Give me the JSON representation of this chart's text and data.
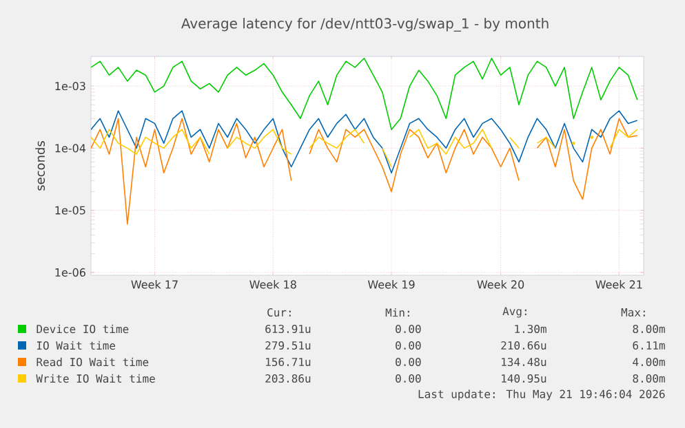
{
  "chart_data": {
    "type": "line",
    "title": "Average latency for /dev/ntt03-vg/swap_1 - by month",
    "ylabel": "seconds",
    "log": true,
    "grid": true,
    "legend": "bottom",
    "ylim": [
      9e-07,
      0.003
    ],
    "yticks": [
      {
        "value": 1e-06,
        "label": "1e-06"
      },
      {
        "value": 1e-05,
        "label": "1e-05"
      },
      {
        "value": 0.0001,
        "label": "1e-04"
      },
      {
        "value": 0.001,
        "label": "1e-03"
      }
    ],
    "categories": [
      null,
      null,
      null,
      null,
      null,
      null,
      null,
      "Week 17",
      null,
      null,
      null,
      null,
      null,
      null,
      null,
      null,
      null,
      null,
      null,
      null,
      "Week 18",
      null,
      null,
      null,
      null,
      null,
      null,
      null,
      null,
      null,
      null,
      null,
      null,
      "Week 19",
      null,
      null,
      null,
      null,
      null,
      null,
      null,
      null,
      null,
      null,
      null,
      "Week 20",
      null,
      null,
      null,
      null,
      null,
      null,
      null,
      null,
      null,
      null,
      null,
      null,
      "Week 21",
      null,
      null
    ],
    "series": [
      {
        "name": "Device IO time",
        "color": "#00cc00",
        "values": [
          0.002,
          0.0025,
          0.0015,
          0.002,
          0.0012,
          0.0018,
          0.0015,
          0.0008,
          0.001,
          0.002,
          0.0025,
          0.0012,
          0.0009,
          0.0011,
          0.0008,
          0.0015,
          0.002,
          0.0015,
          0.0018,
          0.0023,
          0.0015,
          0.0008,
          0.0005,
          0.0003,
          0.0007,
          0.0012,
          0.0005,
          0.0015,
          0.0025,
          0.002,
          0.0028,
          0.0015,
          0.0008,
          0.0002,
          0.0003,
          0.001,
          0.0018,
          0.0012,
          0.0007,
          0.0003,
          0.0015,
          0.002,
          0.0025,
          0.0013,
          0.0028,
          0.0015,
          0.002,
          0.0005,
          0.0015,
          0.0025,
          0.002,
          0.001,
          0.002,
          0.0003,
          0.0008,
          0.002,
          0.0006,
          0.0012,
          0.002,
          0.0015,
          0.0006
        ]
      },
      {
        "name": "IO Wait time",
        "color": "#0066b3",
        "values": [
          0.0002,
          0.0003,
          0.00015,
          0.0004,
          0.0002,
          0.0001,
          0.0003,
          0.00025,
          0.00012,
          0.0003,
          0.0004,
          0.00015,
          0.0002,
          0.0001,
          0.00025,
          0.00015,
          0.0003,
          0.0002,
          0.00012,
          0.0002,
          0.0003,
          0.0001,
          5e-05,
          0.0001,
          0.0002,
          0.0003,
          0.00015,
          0.00025,
          0.00035,
          0.0002,
          0.0003,
          0.00015,
          0.0001,
          4e-05,
          0.0001,
          0.00025,
          0.0003,
          0.0002,
          0.00015,
          0.0001,
          0.0002,
          0.0003,
          0.00015,
          0.00025,
          0.0003,
          0.0002,
          0.00012,
          6e-05,
          0.00015,
          0.0003,
          0.0002,
          0.0001,
          0.00025,
          0.0001,
          6e-05,
          0.0002,
          0.00015,
          0.0003,
          0.0004,
          0.00025,
          0.00028
        ]
      },
      {
        "name": "Read IO Wait time",
        "color": "#ff8000",
        "values": [
          0.0001,
          0.0002,
          8e-05,
          0.0003,
          6e-06,
          0.00015,
          5e-05,
          0.0002,
          4e-05,
          0.0001,
          0.0003,
          8e-05,
          0.00015,
          6e-05,
          0.0002,
          0.0001,
          0.00025,
          7e-05,
          0.00015,
          5e-05,
          0.0001,
          0.0002,
          3e-05,
          null,
          8e-05,
          0.0002,
          0.0001,
          6e-05,
          0.0002,
          0.00015,
          0.0002,
          0.0001,
          5e-05,
          2e-05,
          8e-05,
          0.0002,
          0.00015,
          7e-05,
          0.00012,
          4e-05,
          0.0001,
          0.0002,
          8e-05,
          0.00015,
          0.0001,
          5e-05,
          0.0001,
          3e-05,
          null,
          0.0001,
          0.00015,
          5e-05,
          0.0002,
          3e-05,
          1.5e-05,
          0.0001,
          0.0002,
          8e-05,
          0.0003,
          0.00015,
          0.00016
        ]
      },
      {
        "name": "Write IO Wait time",
        "color": "#ffcc00",
        "values": [
          0.00015,
          0.0001,
          0.0002,
          0.00012,
          0.0001,
          8e-05,
          0.00015,
          0.00012,
          0.0001,
          0.00015,
          0.0002,
          0.0001,
          0.00015,
          8e-05,
          null,
          0.0001,
          0.00015,
          0.00012,
          0.0001,
          0.00015,
          0.0002,
          0.0001,
          8e-05,
          null,
          0.0001,
          0.00015,
          0.00012,
          0.0001,
          0.00015,
          0.0002,
          0.00012,
          null,
          0.0001,
          5e-05,
          null,
          0.00015,
          0.0002,
          0.0001,
          0.00012,
          8e-05,
          0.00015,
          0.0001,
          0.00012,
          0.0002,
          0.0001,
          null,
          0.00015,
          0.0001,
          null,
          0.00012,
          0.00015,
          0.0001,
          null,
          0.00012,
          null,
          0.00015,
          null,
          0.0001,
          0.0002,
          0.00015,
          0.0002
        ]
      }
    ],
    "annotations": [
      "Cur:",
      "Min:",
      "Avg:",
      "Max:",
      "613.91u",
      "0.00",
      "1.30m",
      "8.00m",
      "279.51u",
      "0.00",
      "210.66u",
      "6.11m",
      "156.71u",
      "0.00",
      "134.48u",
      "4.00m",
      "203.86u",
      "0.00",
      "140.95u",
      "8.00m",
      "Last update: Thu May 21 19:46:04 2026"
    ]
  }
}
